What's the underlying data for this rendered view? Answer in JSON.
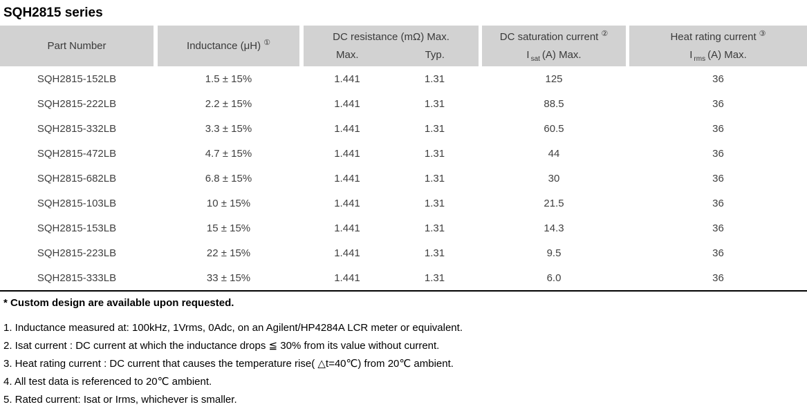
{
  "title": "SQH2815 series",
  "table": {
    "header": {
      "part_number": "Part Number",
      "inductance": "Inductance (μH)",
      "inductance_note_ref": "①",
      "dc_resistance": "DC resistance (mΩ) Max.",
      "dc_resistance_sub_max": "Max.",
      "dc_resistance_sub_typ": "Typ.",
      "dc_saturation": "DC saturation current",
      "dc_saturation_note_ref": "②",
      "isat_prefix": "I",
      "isat_sub": "sat",
      "isat_suffix": "(A)  Max.",
      "heat_rating": "Heat rating current",
      "heat_rating_note_ref": "③",
      "irms_prefix": "I",
      "irms_sub": "rms",
      "irms_suffix": "(A)  Max."
    },
    "rows": [
      {
        "part_number": "SQH2815-152LB",
        "inductance": "1.5 ± 15%",
        "dcr_max": "1.441",
        "dcr_typ": "1.31",
        "isat": "125",
        "irms": "36"
      },
      {
        "part_number": "SQH2815-222LB",
        "inductance": "2.2 ± 15%",
        "dcr_max": "1.441",
        "dcr_typ": "1.31",
        "isat": "88.5",
        "irms": "36"
      },
      {
        "part_number": "SQH2815-332LB",
        "inductance": "3.3 ± 15%",
        "dcr_max": "1.441",
        "dcr_typ": "1.31",
        "isat": "60.5",
        "irms": "36"
      },
      {
        "part_number": "SQH2815-472LB",
        "inductance": "4.7 ± 15%",
        "dcr_max": "1.441",
        "dcr_typ": "1.31",
        "isat": "44",
        "irms": "36"
      },
      {
        "part_number": "SQH2815-682LB",
        "inductance": "6.8 ± 15%",
        "dcr_max": "1.441",
        "dcr_typ": "1.31",
        "isat": "30",
        "irms": "36"
      },
      {
        "part_number": "SQH2815-103LB",
        "inductance": "10 ± 15%",
        "dcr_max": "1.441",
        "dcr_typ": "1.31",
        "isat": "21.5",
        "irms": "36"
      },
      {
        "part_number": "SQH2815-153LB",
        "inductance": "15 ± 15%",
        "dcr_max": "1.441",
        "dcr_typ": "1.31",
        "isat": "14.3",
        "irms": "36"
      },
      {
        "part_number": "SQH2815-223LB",
        "inductance": "22 ± 15%",
        "dcr_max": "1.441",
        "dcr_typ": "1.31",
        "isat": "9.5",
        "irms": "36"
      },
      {
        "part_number": "SQH2815-333LB",
        "inductance": "33 ± 15%",
        "dcr_max": "1.441",
        "dcr_typ": "1.31",
        "isat": "6.0",
        "irms": "36"
      }
    ]
  },
  "notes": {
    "custom": "* Custom design are available upon requested.",
    "items": [
      "1. Inductance measured at: 100kHz, 1Vrms, 0Adc, on an Agilent/HP4284A LCR meter or equivalent.",
      "2. Isat current : DC current at which the inductance drops ≦ 30% from its value without current.",
      "3. Heat rating current : DC current that causes the temperature rise( △t=40℃) from 20℃ ambient.",
      "4. All test data is referenced to 20℃ ambient.",
      "5. Rated current: Isat or Irms, whichever is smaller."
    ]
  },
  "colors": {
    "header_bg": "#d2d2d2",
    "header_text": "#3a3a3a",
    "body_text": "#3f3f3f",
    "rule": "#000000"
  }
}
